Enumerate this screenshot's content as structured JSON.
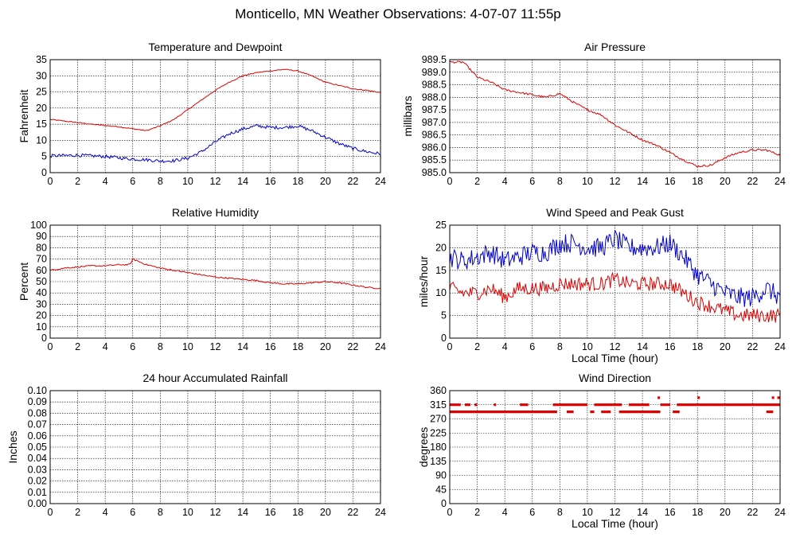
{
  "page": {
    "title": "Monticello, MN Weather Observations: 4-07-07 11:55p"
  },
  "colors": {
    "red": "#dd0000",
    "blue": "#0000cc"
  },
  "chart_data": [
    {
      "id": "temp",
      "type": "line",
      "title": "Temperature and Dewpoint",
      "xlabel": "",
      "ylabel": "Fahrenheit",
      "xlim": [
        0,
        24
      ],
      "ylim": [
        0,
        35
      ],
      "xticks": [
        0,
        2,
        4,
        6,
        8,
        10,
        12,
        14,
        16,
        18,
        20,
        22,
        24
      ],
      "yticks": [
        0,
        5,
        10,
        15,
        20,
        25,
        30,
        35
      ],
      "grid": true,
      "series": [
        {
          "color": "red",
          "x": [
            0,
            1,
            2,
            3,
            4,
            5,
            6,
            7,
            8,
            9,
            10,
            11,
            12,
            13,
            14,
            15,
            16,
            17,
            18,
            19,
            20,
            21,
            22,
            23,
            24
          ],
          "y": [
            16.5,
            16,
            15.5,
            15,
            14.6,
            14.2,
            13.6,
            13.0,
            14.5,
            16.5,
            19.5,
            22.5,
            25.5,
            28,
            30,
            31,
            31.5,
            32,
            31.5,
            30,
            28,
            27,
            26,
            25.5,
            24.8
          ],
          "noise": 0.15
        },
        {
          "color": "blue",
          "x": [
            0,
            1,
            2,
            3,
            4,
            5,
            6,
            7,
            8,
            9,
            10,
            11,
            12,
            13,
            14,
            15,
            16,
            17,
            18,
            19,
            20,
            21,
            22,
            23,
            24
          ],
          "y": [
            5.2,
            5.3,
            5.4,
            5.2,
            5,
            4.6,
            4.2,
            4.0,
            3.6,
            3.7,
            4.5,
            6.5,
            9.5,
            12,
            13.5,
            14.5,
            14,
            14,
            14.5,
            13,
            11,
            9,
            7.5,
            6.5,
            5.8
          ],
          "noise": 0.5
        }
      ]
    },
    {
      "id": "pressure",
      "type": "line",
      "title": "Air Pressure",
      "xlabel": "",
      "ylabel": "millibars",
      "xlim": [
        0,
        24
      ],
      "ylim": [
        985.0,
        989.5
      ],
      "xticks": [
        0,
        2,
        4,
        6,
        8,
        10,
        12,
        14,
        16,
        18,
        20,
        22,
        24
      ],
      "yticks": [
        "985.0",
        "985.5",
        "986.0",
        "986.5",
        "987.0",
        "987.5",
        "988.0",
        "988.5",
        "989.0",
        "989.5"
      ],
      "grid": true,
      "series": [
        {
          "color": "red",
          "x": [
            0,
            0.5,
            1,
            2,
            3,
            4,
            5,
            6,
            7,
            8,
            9,
            10,
            11,
            12,
            13,
            14,
            15,
            16,
            17,
            18,
            19,
            20,
            21,
            22,
            23,
            24
          ],
          "y": [
            989.4,
            989.4,
            989.4,
            988.8,
            988.6,
            988.3,
            988.2,
            988.1,
            988.0,
            988.15,
            987.8,
            987.5,
            987.3,
            986.9,
            986.6,
            986.3,
            986.1,
            985.8,
            985.5,
            985.25,
            985.3,
            985.6,
            985.8,
            985.9,
            985.9,
            985.7
          ],
          "noise": 0.04
        }
      ]
    },
    {
      "id": "humidity",
      "type": "line",
      "title": "Relative Humidity",
      "xlabel": "",
      "ylabel": "Percent",
      "xlim": [
        0,
        24
      ],
      "ylim": [
        0,
        100
      ],
      "xticks": [
        0,
        2,
        4,
        6,
        8,
        10,
        12,
        14,
        16,
        18,
        20,
        22,
        24
      ],
      "yticks": [
        0,
        10,
        20,
        30,
        40,
        50,
        60,
        70,
        80,
        90,
        100
      ],
      "grid": true,
      "series": [
        {
          "color": "red",
          "x": [
            0,
            1,
            2,
            3,
            4,
            5,
            5.8,
            6,
            7,
            8,
            9,
            10,
            11,
            12,
            13,
            14,
            15,
            16,
            17,
            18,
            19,
            20,
            21,
            22,
            23,
            24
          ],
          "y": [
            60,
            62,
            63,
            64,
            64,
            65,
            65,
            70,
            65,
            62,
            60,
            58,
            56,
            54,
            53,
            52,
            51,
            49,
            48,
            48,
            49,
            50,
            49,
            47,
            45,
            44
          ],
          "noise": 0.6
        }
      ]
    },
    {
      "id": "wind",
      "type": "line",
      "title": "Wind Speed and Peak Gust",
      "xlabel": "Local Time (hour)",
      "ylabel": "miles/hour",
      "xlim": [
        0,
        24
      ],
      "ylim": [
        0,
        25
      ],
      "xticks": [
        0,
        2,
        4,
        6,
        8,
        10,
        12,
        14,
        16,
        18,
        20,
        22,
        24
      ],
      "yticks": [
        0,
        5,
        10,
        15,
        20,
        25
      ],
      "grid": true,
      "series": [
        {
          "color": "blue",
          "x": [
            0,
            1,
            2,
            3,
            4,
            5,
            6,
            7,
            8,
            9,
            10,
            11,
            12,
            13,
            14,
            15,
            16,
            17,
            18,
            19,
            20,
            21,
            22,
            23,
            24
          ],
          "y": [
            18,
            17,
            18,
            19,
            17,
            18,
            19,
            19,
            21,
            21,
            20,
            20,
            22,
            20,
            20,
            20,
            21,
            18,
            14,
            12,
            10,
            9,
            9,
            11,
            9
          ],
          "noise": 2.2
        },
        {
          "color": "red",
          "x": [
            0,
            1,
            2,
            3,
            4,
            5,
            6,
            7,
            8,
            9,
            10,
            11,
            12,
            13,
            14,
            15,
            16,
            17,
            18,
            19,
            20,
            21,
            22,
            23,
            24
          ],
          "y": [
            11,
            10,
            10,
            11,
            9,
            11,
            11,
            11,
            12,
            12,
            12,
            12,
            13,
            12,
            12,
            12,
            12,
            10,
            8,
            7,
            6,
            5,
            5,
            5,
            5
          ],
          "noise": 1.6
        }
      ]
    },
    {
      "id": "rain",
      "type": "line",
      "title": "24 hour Accumulated Rainfall",
      "xlabel": "",
      "ylabel": "Inches",
      "xlim": [
        0,
        24
      ],
      "ylim": [
        0,
        0.1
      ],
      "xticks": [
        0,
        2,
        4,
        6,
        8,
        10,
        12,
        14,
        16,
        18,
        20,
        22,
        24
      ],
      "yticks": [
        "0.00",
        "0.01",
        "0.02",
        "0.03",
        "0.04",
        "0.05",
        "0.06",
        "0.07",
        "0.08",
        "0.09",
        "0.10"
      ],
      "grid": true,
      "series": [
        {
          "color": "red",
          "x": [
            0,
            24
          ],
          "y": [
            0,
            0
          ],
          "noise": 0
        }
      ]
    },
    {
      "id": "direction",
      "type": "scatter",
      "title": "Wind Direction",
      "xlabel": "Local Time (hour)",
      "ylabel": "degrees",
      "xlim": [
        0,
        24
      ],
      "ylim": [
        0,
        360
      ],
      "xticks": [
        0,
        2,
        4,
        6,
        8,
        10,
        12,
        14,
        16,
        18,
        20,
        22,
        24
      ],
      "yticks": [
        0,
        45,
        90,
        135,
        180,
        225,
        270,
        315,
        360
      ],
      "grid": true,
      "series": [
        {
          "color": "red",
          "y": 292.5,
          "segments": [
            [
              0,
              7.8
            ],
            [
              8.5,
              9
            ],
            [
              10.2,
              10.5
            ],
            [
              11,
              11.7
            ],
            [
              12.3,
              15.3
            ],
            [
              16.2,
              16.7
            ],
            [
              23,
              23.5
            ]
          ]
        },
        {
          "color": "red",
          "y": 315,
          "segments": [
            [
              0,
              0.8
            ],
            [
              1.1,
              1.5
            ],
            [
              1.8,
              2
            ],
            [
              3.2,
              3.3
            ],
            [
              5.1,
              5.7
            ],
            [
              7.5,
              10
            ],
            [
              10.5,
              12.5
            ],
            [
              13,
              14.5
            ],
            [
              15.3,
              16
            ],
            [
              16.5,
              24
            ]
          ]
        },
        {
          "color": "red",
          "y": 337.5,
          "segments": [
            [
              15.1,
              15.2
            ],
            [
              18.0,
              18.1
            ],
            [
              23.4,
              23.5
            ],
            [
              23.8,
              24
            ]
          ]
        }
      ]
    }
  ]
}
